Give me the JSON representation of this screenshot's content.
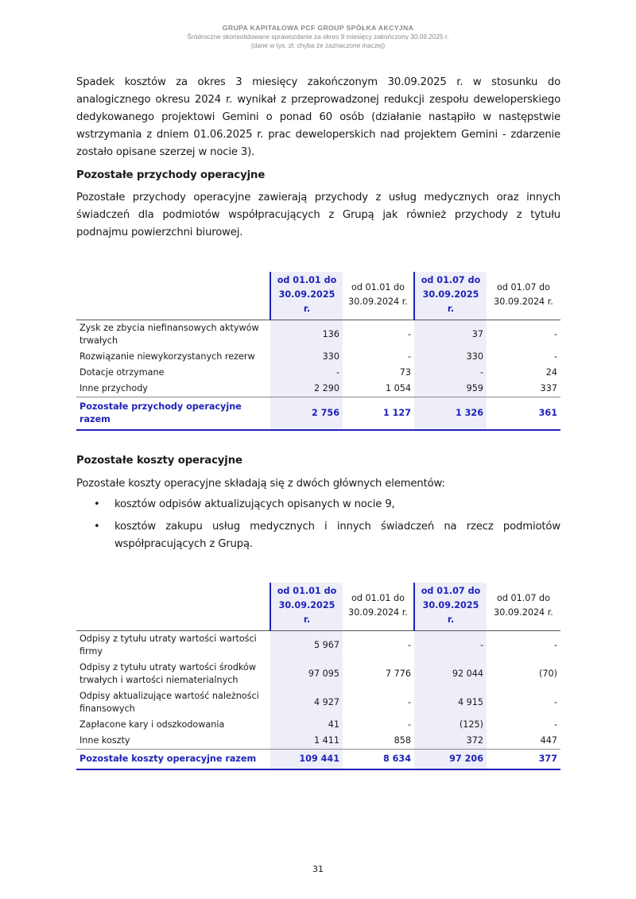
{
  "header": {
    "company": "GRUPA KAPITAŁOWA PCF GROUP SPÓŁKA AKCYJNA",
    "report": "Śródroczne skonsolidowane sprawozdanie za okres 9 miesięcy zakończony 30.09.2025 r.",
    "units": "(dane w tys. zł, chyba że zaznaczone inaczej)"
  },
  "intro_paragraph": "Spadek kosztów za okres 3 miesięcy zakończonym 30.09.2025 r. w stosunku do analogicznego okresu 2024 r. wynikał z przeprowadzonej redukcji zespołu deweloperskiego dedykowanego projektowi Gemini o ponad 60 osób (działanie nastąpiło w następstwie wstrzymania z dniem 01.06.2025 r. prac deweloperskich nad projektem Gemini - zdarzenie zostało opisane szerzej w nocie 3).",
  "income_section": {
    "heading": "Pozostałe przychody operacyjne",
    "paragraph": "Pozostałe przychody operacyjne zawierają przychody z usług medycznych oraz innych świadczeń dla podmiotów współpracujących z Grupą jak również przychody z tytułu podnajmu powierzchni biurowej.",
    "table": {
      "columns": [
        {
          "line1": "od 01.01 do",
          "line2": "30.09.2025 r."
        },
        {
          "line1": "od 01.01 do",
          "line2": "30.09.2024 r."
        },
        {
          "line1": "od 01.07 do",
          "line2": "30.09.2025 r."
        },
        {
          "line1": "od 01.07 do",
          "line2": "30.09.2024 r."
        }
      ],
      "rows": [
        {
          "label": "Zysk ze zbycia niefinansowych aktywów trwałych",
          "values": [
            "136",
            "-",
            "37",
            "-"
          ]
        },
        {
          "label": "Rozwiązanie niewykorzystanych rezerw",
          "values": [
            "330",
            "-",
            "330",
            "-"
          ]
        },
        {
          "label": "Dotacje otrzymane",
          "values": [
            "-",
            "73",
            "-",
            "24"
          ]
        },
        {
          "label": "Inne przychody",
          "values": [
            "2 290",
            "1 054",
            "959",
            "337"
          ]
        }
      ],
      "total": {
        "label": "Pozostałe przychody operacyjne razem",
        "values": [
          "2 756",
          "1 127",
          "1 326",
          "361"
        ]
      }
    }
  },
  "costs_section": {
    "heading": "Pozostałe koszty operacyjne",
    "paragraph": "Pozostałe koszty operacyjne składają się z dwóch głównych elementów:",
    "bullets": [
      "kosztów odpisów aktualizujących opisanych w nocie 9,",
      "kosztów zakupu usług medycznych i innych świadczeń na rzecz podmiotów współpracujących z Grupą."
    ],
    "table": {
      "columns": [
        {
          "line1": "od 01.01 do",
          "line2": "30.09.2025 r."
        },
        {
          "line1": "od 01.01 do",
          "line2": "30.09.2024 r."
        },
        {
          "line1": "od 01.07 do",
          "line2": "30.09.2025 r."
        },
        {
          "line1": "od 01.07 do",
          "line2": "30.09.2024 r."
        }
      ],
      "rows": [
        {
          "label": "Odpisy z tytułu utraty wartości wartości firmy",
          "values": [
            "5 967",
            "-",
            "-",
            "-"
          ]
        },
        {
          "label": "Odpisy z tytułu utraty wartości środków trwałych i wartości niematerialnych",
          "values": [
            "97 095",
            "7 776",
            "92 044",
            "(70)"
          ]
        },
        {
          "label": "Odpisy aktualizujące wartość należności finansowych",
          "values": [
            "4 927",
            "-",
            "4 915",
            "-"
          ]
        },
        {
          "label": "Zapłacone kary i odszkodowania",
          "values": [
            "41",
            "-",
            "(125)",
            "-"
          ]
        },
        {
          "label": "Inne koszty",
          "values": [
            "1 411",
            "858",
            "372",
            "447"
          ]
        }
      ],
      "total": {
        "label": "Pozostałe koszty operacyjne razem",
        "values": [
          "109 441",
          "8 634",
          "97 206",
          "377"
        ]
      }
    }
  },
  "page_number": "31",
  "colors": {
    "accent": "#1f24b8",
    "highlight_bg": "#eeeef8",
    "header_gray": "#8a8a8a"
  }
}
